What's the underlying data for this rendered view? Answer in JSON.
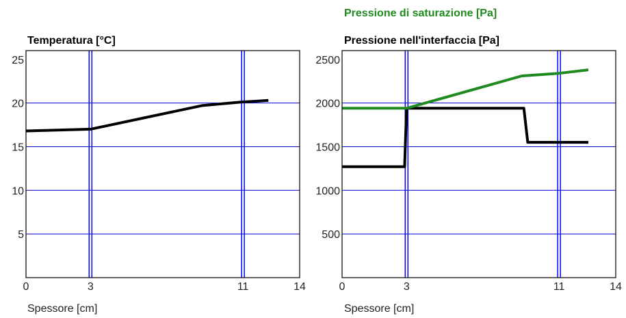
{
  "colors": {
    "frame": "#000000",
    "grid": "#0000cc",
    "layer_boundary": "#0000ff",
    "temperature_line": "#000000",
    "pressure_interface_line": "#000000",
    "saturation_line": "#1f8a1f"
  },
  "chart_data": [
    {
      "type": "line",
      "title": "Temperatura [°C]",
      "xlabel": "Spessore [cm]",
      "ylabel": "",
      "xlim": [
        0,
        14
      ],
      "ylim": [
        0,
        26
      ],
      "x_ticks": [
        {
          "value": 0,
          "label": "0"
        },
        {
          "value": 3.3,
          "label": "3"
        },
        {
          "value": 11.1,
          "label": "11"
        },
        {
          "value": 14,
          "label": "14"
        }
      ],
      "y_ticks": [
        {
          "value": 5,
          "label": "5"
        },
        {
          "value": 10,
          "label": "10"
        },
        {
          "value": 15,
          "label": "15"
        },
        {
          "value": 20,
          "label": "20"
        },
        {
          "value": 25,
          "label": "25"
        }
      ],
      "grid_y": [
        5,
        10,
        15,
        20
      ],
      "layer_boundaries": [
        3.3,
        11.1
      ],
      "series": [
        {
          "color_key": "temperature_line",
          "points": [
            [
              0,
              16.8
            ],
            [
              3.3,
              17.0
            ],
            [
              9.0,
              19.7
            ],
            [
              11.0,
              20.1
            ],
            [
              12.4,
              20.3
            ]
          ]
        }
      ]
    },
    {
      "type": "line",
      "title": "Pressione nell'interfaccia [Pa]",
      "title_secondary": "Pressione di saturazione [Pa]",
      "xlabel": "Spessore [cm]",
      "ylabel": "",
      "xlim": [
        0,
        14
      ],
      "ylim": [
        0,
        2600
      ],
      "x_ticks": [
        {
          "value": 0,
          "label": "0"
        },
        {
          "value": 3.3,
          "label": "3"
        },
        {
          "value": 11.1,
          "label": "11"
        },
        {
          "value": 14,
          "label": "14"
        }
      ],
      "y_ticks": [
        {
          "value": 500,
          "label": "500"
        },
        {
          "value": 1000,
          "label": "1000"
        },
        {
          "value": 1500,
          "label": "1500"
        },
        {
          "value": 2000,
          "label": "2000"
        },
        {
          "value": 2500,
          "label": "2500"
        }
      ],
      "grid_y": [
        500,
        1000,
        1500,
        2000
      ],
      "layer_boundaries": [
        3.3,
        11.1
      ],
      "series": [
        {
          "name": "Pressione nell'interfaccia [Pa]",
          "color_key": "pressure_interface_line",
          "points": [
            [
              0,
              1270
            ],
            [
              3.2,
              1270
            ],
            [
              3.3,
              1940
            ],
            [
              9.3,
              1940
            ],
            [
              9.5,
              1550
            ],
            [
              12.6,
              1550
            ]
          ]
        },
        {
          "name": "Pressione di saturazione [Pa]",
          "color_key": "saturation_line",
          "points": [
            [
              0,
              1940
            ],
            [
              3.3,
              1940
            ],
            [
              9.2,
              2310
            ],
            [
              11.1,
              2340
            ],
            [
              12.6,
              2380
            ]
          ]
        }
      ]
    }
  ]
}
